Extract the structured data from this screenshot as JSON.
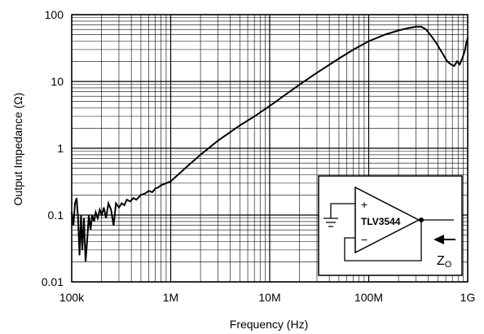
{
  "chart_data": {
    "type": "line",
    "xlabel": "Frequency (Hz)",
    "ylabel": "Output Impedance (Ω)",
    "x_scale": "log",
    "y_scale": "log",
    "xlim": [
      100000,
      1000000000
    ],
    "ylim": [
      0.01,
      100
    ],
    "grid": true,
    "x_ticks": [
      {
        "value": 100000,
        "label": "100k"
      },
      {
        "value": 1000000,
        "label": "1M"
      },
      {
        "value": 10000000,
        "label": "10M"
      },
      {
        "value": 100000000,
        "label": "100M"
      },
      {
        "value": 1000000000,
        "label": "1G"
      }
    ],
    "y_ticks": [
      {
        "value": 0.01,
        "label": "0.01"
      },
      {
        "value": 0.1,
        "label": "0.1"
      },
      {
        "value": 1,
        "label": "1"
      },
      {
        "value": 10,
        "label": "10"
      },
      {
        "value": 100,
        "label": "100"
      }
    ],
    "series": [
      {
        "x": [
          100000,
          104000,
          108000,
          112000,
          116000,
          120000,
          124000,
          128000,
          133000,
          138000,
          143000,
          149000,
          155000,
          161000,
          168000,
          175000,
          183000,
          192000,
          201000,
          211000,
          222000,
          235000,
          250000,
          265000,
          280000,
          300000,
          320000,
          340000,
          360000,
          390000,
          420000,
          450000,
          500000,
          550000,
          600000,
          650000,
          700000,
          750000,
          800000,
          900000,
          1000000,
          1500000,
          2000000,
          3000000,
          5000000,
          7000000,
          10000000,
          20000000,
          30000000,
          50000000,
          70000000,
          100000000,
          150000000,
          200000000,
          250000000,
          300000000,
          340000000,
          380000000,
          420000000,
          480000000,
          550000000,
          620000000,
          680000000,
          730000000,
          780000000,
          830000000,
          880000000,
          930000000,
          970000000,
          1000000000
        ],
        "y": [
          0.11,
          0.07,
          0.15,
          0.18,
          0.09,
          0.025,
          0.1,
          0.03,
          0.09,
          0.02,
          0.04,
          0.1,
          0.06,
          0.1,
          0.08,
          0.11,
          0.09,
          0.12,
          0.1,
          0.13,
          0.09,
          0.15,
          0.12,
          0.07,
          0.15,
          0.13,
          0.15,
          0.14,
          0.17,
          0.16,
          0.18,
          0.17,
          0.2,
          0.21,
          0.23,
          0.22,
          0.25,
          0.26,
          0.28,
          0.3,
          0.32,
          0.55,
          0.8,
          1.3,
          2.2,
          3.0,
          4.3,
          9.0,
          13.5,
          22,
          30,
          40,
          51,
          58,
          63,
          66,
          66,
          60,
          50,
          38,
          27,
          20,
          18,
          17,
          20,
          18,
          22,
          28,
          38,
          45
        ]
      }
    ],
    "inset": {
      "opamp_label": "TLV3544",
      "plus": "+",
      "minus": "−",
      "zo_main": "Z",
      "zo_sub": "O"
    }
  }
}
